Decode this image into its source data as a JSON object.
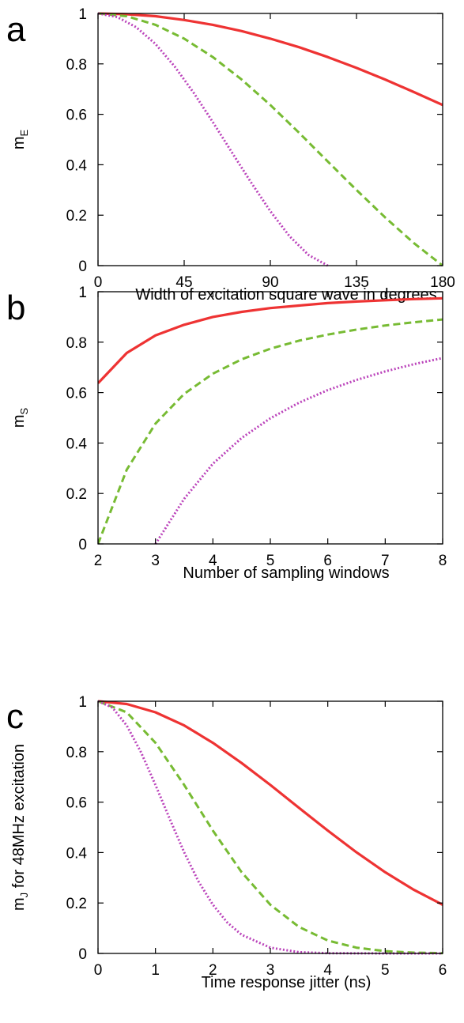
{
  "chart_data": [
    {
      "panel_label": "a",
      "type": "line",
      "xlabel": "Width of excitation square wave in degrees",
      "ylabel": "m",
      "ylabel_sub": "E",
      "xlim": [
        0,
        180
      ],
      "ylim": [
        0,
        1
      ],
      "xticks": [
        "0",
        "45",
        "90",
        "135",
        "180"
      ],
      "yticks": [
        "0",
        "0.2",
        "0.4",
        "0.6",
        "0.8",
        "1"
      ],
      "grid": false,
      "series": [
        {
          "style": "solid",
          "color": "#ee3333",
          "x": [
            0,
            15,
            30,
            45,
            60,
            75,
            90,
            105,
            120,
            135,
            150,
            165,
            180
          ],
          "y": [
            1.0,
            0.997,
            0.989,
            0.974,
            0.955,
            0.93,
            0.9,
            0.866,
            0.827,
            0.784,
            0.738,
            0.688,
            0.637
          ]
        },
        {
          "style": "dashed",
          "color": "#77bb33",
          "x": [
            0,
            15,
            30,
            45,
            60,
            75,
            90,
            105,
            120,
            135,
            150,
            165,
            180
          ],
          "y": [
            1.0,
            0.989,
            0.955,
            0.9,
            0.827,
            0.738,
            0.637,
            0.527,
            0.413,
            0.3,
            0.191,
            0.089,
            0.0
          ]
        },
        {
          "style": "dotted",
          "color": "#bb44bb",
          "x": [
            0,
            10,
            20,
            30,
            40,
            50,
            60,
            70,
            80,
            90,
            100,
            110,
            120
          ],
          "y": [
            1.0,
            0.986,
            0.945,
            0.879,
            0.79,
            0.685,
            0.569,
            0.448,
            0.329,
            0.216,
            0.117,
            0.042,
            0.0
          ]
        }
      ]
    },
    {
      "panel_label": "b",
      "type": "line",
      "xlabel": "Number of sampling windows",
      "ylabel": "m",
      "ylabel_sub": "S",
      "xlim": [
        2,
        8
      ],
      "ylim": [
        0,
        1
      ],
      "xticks": [
        "2",
        "3",
        "4",
        "5",
        "6",
        "7",
        "8"
      ],
      "yticks": [
        "0",
        "0.2",
        "0.4",
        "0.6",
        "0.8",
        "1"
      ],
      "grid": false,
      "series": [
        {
          "style": "solid",
          "color": "#ee3333",
          "x": [
            2,
            2.5,
            3,
            3.5,
            4,
            4.5,
            5,
            5.5,
            6,
            6.5,
            7,
            7.5,
            8
          ],
          "y": [
            0.637,
            0.757,
            0.827,
            0.869,
            0.9,
            0.92,
            0.935,
            0.945,
            0.955,
            0.961,
            0.966,
            0.971,
            0.974
          ]
        },
        {
          "style": "dashed",
          "color": "#77bb33",
          "x": [
            2,
            2.5,
            3,
            3.5,
            4,
            4.5,
            5,
            5.5,
            6,
            6.5,
            7,
            7.5,
            8
          ],
          "y": [
            0.0,
            0.294,
            0.477,
            0.595,
            0.675,
            0.732,
            0.774,
            0.806,
            0.83,
            0.85,
            0.866,
            0.879,
            0.89
          ]
        },
        {
          "style": "dotted",
          "color": "#bb44bb",
          "x": [
            3,
            3.5,
            4,
            4.5,
            5,
            5.5,
            6,
            6.5,
            7,
            7.5,
            8
          ],
          "y": [
            0.0,
            0.179,
            0.318,
            0.42,
            0.498,
            0.56,
            0.61,
            0.65,
            0.684,
            0.713,
            0.737
          ]
        }
      ]
    },
    {
      "panel_label": "c",
      "type": "line",
      "xlabel": "Time response jitter (ns)",
      "ylabel": "m",
      "ylabel_sub": "J",
      "ylabel_rest": " for 48MHz excitation",
      "xlim": [
        0,
        6
      ],
      "ylim": [
        0,
        1
      ],
      "xticks": [
        "0",
        "1",
        "2",
        "3",
        "4",
        "5",
        "6"
      ],
      "yticks": [
        "0",
        "0.2",
        "0.4",
        "0.6",
        "0.8",
        "1"
      ],
      "grid": false,
      "series": [
        {
          "style": "solid",
          "color": "#ee3333",
          "x": [
            0,
            0.5,
            1,
            1.5,
            2,
            2.5,
            3,
            3.5,
            4,
            4.5,
            5,
            5.5,
            6
          ],
          "y": [
            1.0,
            0.989,
            0.956,
            0.904,
            0.835,
            0.755,
            0.668,
            0.577,
            0.487,
            0.401,
            0.322,
            0.252,
            0.193
          ]
        },
        {
          "style": "dashed",
          "color": "#77bb33",
          "x": [
            0,
            0.5,
            1,
            1.5,
            2,
            2.5,
            3,
            3.5,
            4,
            4.5,
            5,
            5.5,
            6
          ],
          "y": [
            1.0,
            0.956,
            0.835,
            0.668,
            0.487,
            0.322,
            0.193,
            0.105,
            0.051,
            0.023,
            0.009,
            0.003,
            0.001
          ]
        },
        {
          "style": "dotted",
          "color": "#bb44bb",
          "x": [
            0,
            0.25,
            0.5,
            0.75,
            1,
            1.25,
            1.5,
            1.75,
            2,
            2.25,
            2.5,
            3,
            3.5,
            4,
            5,
            6
          ],
          "y": [
            1.0,
            0.975,
            0.904,
            0.797,
            0.668,
            0.533,
            0.401,
            0.285,
            0.193,
            0.123,
            0.074,
            0.023,
            0.005,
            0.001,
            0.0,
            0.0
          ]
        }
      ]
    }
  ]
}
